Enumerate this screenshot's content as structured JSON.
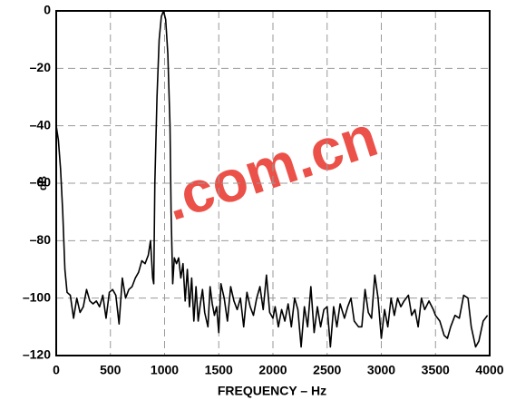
{
  "chart_data": {
    "type": "line",
    "x_label": "FREQUENCY – Hz",
    "y_label": "dB",
    "watermark": ".com.cn",
    "x": [
      0,
      20,
      40,
      60,
      80,
      100,
      130,
      160,
      190,
      220,
      250,
      280,
      310,
      340,
      370,
      400,
      430,
      460,
      490,
      520,
      550,
      580,
      610,
      640,
      670,
      700,
      730,
      760,
      790,
      820,
      850,
      870,
      890,
      900,
      910,
      930,
      950,
      970,
      990,
      1010,
      1030,
      1050,
      1060,
      1075,
      1090,
      1110,
      1130,
      1150,
      1170,
      1190,
      1210,
      1230,
      1250,
      1270,
      1290,
      1310,
      1330,
      1350,
      1370,
      1400,
      1420,
      1440,
      1460,
      1480,
      1500,
      1520,
      1550,
      1580,
      1610,
      1640,
      1670,
      1700,
      1730,
      1760,
      1790,
      1820,
      1850,
      1880,
      1910,
      1940,
      1970,
      2000,
      2020,
      2050,
      2080,
      2110,
      2140,
      2170,
      2200,
      2230,
      2260,
      2290,
      2320,
      2350,
      2380,
      2410,
      2440,
      2470,
      2500,
      2530,
      2560,
      2590,
      2620,
      2660,
      2690,
      2720,
      2750,
      2790,
      2820,
      2850,
      2880,
      2910,
      2940,
      2970,
      3000,
      3030,
      3060,
      3090,
      3120,
      3150,
      3180,
      3210,
      3250,
      3280,
      3310,
      3340,
      3370,
      3400,
      3440,
      3480,
      3500,
      3540,
      3580,
      3610,
      3640,
      3680,
      3720,
      3760,
      3800,
      3830,
      3870,
      3900,
      3940,
      3980
    ],
    "series": [
      {
        "color": "#000000",
        "values": [
          -40,
          -45,
          -55,
          -70,
          -90,
          -98,
          -99,
          -107,
          -100,
          -105,
          -103,
          -97,
          -101,
          -102,
          -101,
          -103,
          -99,
          -107,
          -98,
          -97,
          -99,
          -109,
          -93,
          -100,
          -97,
          -96,
          -93,
          -91,
          -87,
          -88,
          -85,
          -80,
          -93,
          -95,
          -60,
          -30,
          -10,
          -2,
          0,
          -3,
          -15,
          -40,
          -70,
          -95,
          -86,
          -88,
          -86,
          -93,
          -88,
          -101,
          -90,
          -103,
          -93,
          -108,
          -96,
          -108,
          -102,
          -97,
          -105,
          -110,
          -96,
          -102,
          -106,
          -103,
          -112,
          -95,
          -100,
          -108,
          -96,
          -101,
          -104,
          -100,
          -110,
          -98,
          -103,
          -106,
          -100,
          -96,
          -104,
          -92,
          -105,
          -107,
          -103,
          -110,
          -104,
          -108,
          -102,
          -110,
          -100,
          -104,
          -117,
          -103,
          -110,
          -96,
          -112,
          -103,
          -110,
          -104,
          -103,
          -117,
          -103,
          -110,
          -102,
          -107,
          -103,
          -100,
          -108,
          -110,
          -110,
          -97,
          -105,
          -107,
          -92,
          -100,
          -114,
          -104,
          -110,
          -100,
          -106,
          -100,
          -103,
          -101,
          -99,
          -106,
          -104,
          -110,
          -100,
          -104,
          -101,
          -104,
          -106,
          -108,
          -113,
          -114,
          -110,
          -106,
          -107,
          -99,
          -100,
          -110,
          -117,
          -115,
          -108,
          -106
        ]
      }
    ],
    "xlim": [
      0,
      4000
    ],
    "xticks": [
      0,
      500,
      1000,
      1500,
      2000,
      2500,
      3000,
      3500,
      4000
    ],
    "ylim": [
      -120,
      0
    ],
    "yticks": [
      {
        "value": -120,
        "label": "–120"
      },
      {
        "value": -100,
        "label": "–100"
      },
      {
        "value": -80,
        "label": "–80"
      },
      {
        "value": -60,
        "label": "–60"
      },
      {
        "value": -40,
        "label": "–40"
      },
      {
        "value": -20,
        "label": "–20"
      },
      0
    ],
    "grid": true
  }
}
